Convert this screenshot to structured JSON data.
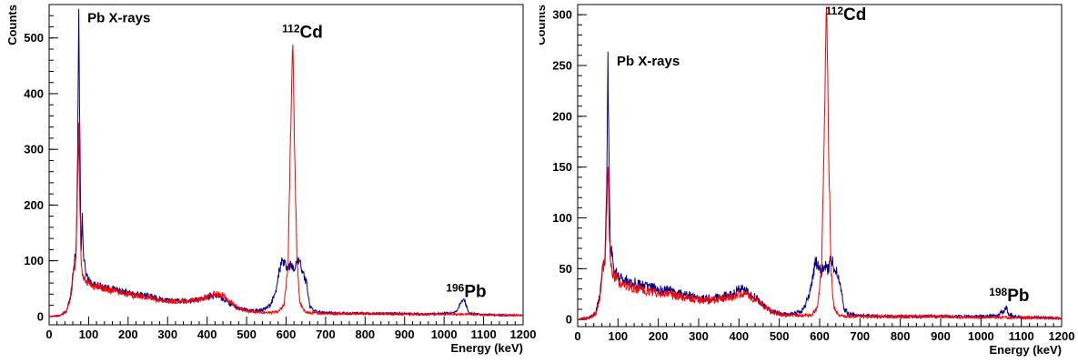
{
  "chart_data": [
    {
      "type": "line",
      "xlabel": "Energy (keV)",
      "ylabel": "Counts",
      "xlim": [
        0,
        1200
      ],
      "ylim": [
        -15,
        560
      ],
      "xticks": [
        0,
        100,
        200,
        300,
        400,
        500,
        600,
        700,
        800,
        900,
        1000,
        1100,
        1200
      ],
      "yticks": [
        0,
        100,
        200,
        300,
        400,
        500
      ],
      "grid": false,
      "colors": {
        "series_a": "#00008b",
        "series_b": "#ff0000"
      },
      "annotations": [
        {
          "prefix": "",
          "text": "Pb X-rays",
          "x": 97,
          "y": 528
        },
        {
          "prefix": "112",
          "text": "Cd",
          "x": 590,
          "y": 500
        },
        {
          "prefix": "196",
          "text": "Pb",
          "x": 1005,
          "y": 35
        }
      ],
      "series": [
        {
          "x": [
            0,
            30,
            45,
            55,
            62,
            68,
            72,
            75,
            78,
            81,
            84,
            88,
            92,
            96,
            100,
            110,
            130,
            150,
            170,
            200,
            230,
            260,
            290,
            320,
            350,
            380,
            400,
            420,
            440,
            460,
            480,
            500,
            520,
            540,
            560,
            575,
            582,
            590,
            598,
            605,
            612,
            620,
            628,
            636,
            644,
            652,
            660,
            670,
            690,
            720,
            760,
            800,
            850,
            900,
            950,
            1000,
            1030,
            1045,
            1050,
            1055,
            1065,
            1100,
            1150,
            1200
          ],
          "values": [
            0,
            2,
            10,
            40,
            90,
            115,
            280,
            548,
            310,
            115,
            175,
            100,
            85,
            72,
            68,
            58,
            55,
            50,
            48,
            42,
            38,
            36,
            30,
            28,
            27,
            30,
            35,
            38,
            32,
            22,
            15,
            12,
            10,
            12,
            20,
            45,
            80,
            100,
            92,
            85,
            95,
            80,
            105,
            95,
            75,
            60,
            20,
            10,
            7,
            6,
            6,
            5,
            5,
            5,
            4,
            5,
            8,
            30,
            35,
            20,
            5,
            3,
            2,
            2
          ]
        },
        {
          "x": [
            0,
            30,
            45,
            55,
            62,
            68,
            72,
            75,
            78,
            81,
            84,
            88,
            92,
            96,
            100,
            110,
            130,
            150,
            170,
            200,
            230,
            260,
            290,
            320,
            350,
            380,
            400,
            420,
            440,
            460,
            480,
            500,
            520,
            540,
            560,
            580,
            595,
            605,
            612,
            617,
            622,
            628,
            635,
            645,
            660,
            700,
            760,
            800,
            850,
            900,
            950,
            1000,
            1050,
            1100,
            1150,
            1200
          ],
          "values": [
            0,
            2,
            10,
            35,
            80,
            100,
            230,
            345,
            200,
            95,
            80,
            70,
            65,
            60,
            58,
            55,
            52,
            48,
            45,
            40,
            36,
            33,
            28,
            27,
            28,
            30,
            35,
            40,
            38,
            26,
            14,
            10,
            8,
            7,
            7,
            8,
            20,
            90,
            350,
            505,
            280,
            90,
            25,
            10,
            6,
            6,
            5,
            5,
            5,
            4,
            4,
            4,
            4,
            3,
            3,
            2
          ]
        }
      ]
    },
    {
      "type": "line",
      "xlabel": "Energy (keV)",
      "ylabel": "Counts",
      "xlim": [
        0,
        1200
      ],
      "ylim": [
        -7,
        310
      ],
      "xticks": [
        0,
        100,
        200,
        300,
        400,
        500,
        600,
        700,
        800,
        900,
        1000,
        1100,
        1200
      ],
      "yticks": [
        0,
        50,
        100,
        150,
        200,
        250,
        300
      ],
      "grid": false,
      "colors": {
        "series_a": "#00008b",
        "series_b": "#ff0000"
      },
      "annotations": [
        {
          "prefix": "",
          "text": "Pb X-rays",
          "x": 97,
          "y": 250
        },
        {
          "prefix": "112",
          "text": "Cd",
          "x": 615,
          "y": 295
        },
        {
          "prefix": "198",
          "text": "Pb",
          "x": 1020,
          "y": 18
        }
      ],
      "series": [
        {
          "x": [
            0,
            30,
            45,
            55,
            62,
            68,
            72,
            75,
            78,
            81,
            84,
            88,
            92,
            96,
            100,
            110,
            130,
            150,
            170,
            200,
            230,
            260,
            290,
            320,
            350,
            380,
            400,
            420,
            440,
            460,
            480,
            500,
            520,
            540,
            560,
            575,
            582,
            590,
            598,
            605,
            612,
            620,
            628,
            636,
            644,
            652,
            660,
            670,
            690,
            720,
            760,
            800,
            850,
            900,
            950,
            1000,
            1040,
            1055,
            1062,
            1068,
            1080,
            1100,
            1150,
            1200
          ],
          "values": [
            0,
            2,
            6,
            25,
            55,
            60,
            130,
            252,
            150,
            60,
            70,
            55,
            50,
            45,
            42,
            40,
            38,
            35,
            32,
            30,
            28,
            25,
            22,
            20,
            22,
            25,
            30,
            28,
            22,
            14,
            8,
            6,
            5,
            6,
            10,
            25,
            40,
            58,
            50,
            45,
            55,
            48,
            60,
            52,
            45,
            35,
            12,
            6,
            4,
            4,
            3,
            3,
            3,
            3,
            3,
            3,
            4,
            8,
            12,
            6,
            3,
            2,
            2,
            1
          ]
        },
        {
          "x": [
            0,
            30,
            45,
            55,
            62,
            68,
            72,
            75,
            78,
            81,
            84,
            88,
            92,
            96,
            100,
            110,
            130,
            150,
            170,
            200,
            230,
            260,
            290,
            320,
            350,
            380,
            400,
            420,
            440,
            460,
            480,
            500,
            520,
            540,
            560,
            580,
            595,
            605,
            612,
            617,
            622,
            628,
            635,
            645,
            660,
            700,
            760,
            800,
            850,
            900,
            950,
            1000,
            1050,
            1100,
            1150,
            1200
          ],
          "values": [
            0,
            2,
            6,
            22,
            50,
            55,
            110,
            160,
            100,
            55,
            50,
            45,
            42,
            40,
            38,
            35,
            32,
            30,
            28,
            26,
            24,
            22,
            20,
            19,
            20,
            22,
            25,
            24,
            20,
            14,
            8,
            5,
            4,
            4,
            4,
            5,
            12,
            50,
            200,
            307,
            180,
            50,
            12,
            5,
            3,
            3,
            3,
            3,
            3,
            3,
            2,
            2,
            2,
            2,
            2,
            1
          ]
        }
      ]
    }
  ]
}
